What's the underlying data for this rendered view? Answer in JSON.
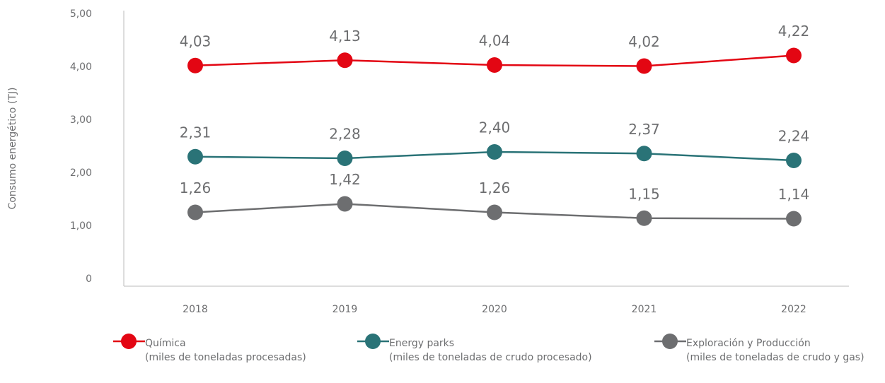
{
  "chart_data": {
    "type": "line",
    "y_label": "Consumo energético (TJ)",
    "categories": [
      "2018",
      "2019",
      "2020",
      "2021",
      "2022"
    ],
    "ylim": [
      0,
      5
    ],
    "yticks": [
      0,
      {
        "value": 1,
        "label": "1,00"
      },
      {
        "value": 2,
        "label": "2,00"
      },
      {
        "value": 3,
        "label": "3,00"
      },
      {
        "value": 4,
        "label": "4,00"
      },
      {
        "value": 5,
        "label": "5,00"
      }
    ],
    "series": [
      {
        "name": "Química",
        "unit": "(miles de toneladas procesadas)",
        "color": "#e30613",
        "values": [
          4.03,
          4.13,
          4.04,
          4.02,
          4.22
        ],
        "value_labels": [
          "4,03",
          "4,13",
          "4,04",
          "4,02",
          "4,22"
        ]
      },
      {
        "name": "Energy parks",
        "unit": "(miles de toneladas de crudo procesado)",
        "color": "#2a7377",
        "values": [
          2.31,
          2.28,
          2.4,
          2.37,
          2.24
        ],
        "value_labels": [
          "2,31",
          "2,28",
          "2,40",
          "2,37",
          "2,24"
        ]
      },
      {
        "name": "Exploración y Producción",
        "unit": "(miles de toneladas de crudo y gas)",
        "color": "#6d6e70",
        "values": [
          1.26,
          1.42,
          1.26,
          1.15,
          1.14
        ],
        "value_labels": [
          "1,26",
          "1,42",
          "1,26",
          "1,15",
          "1,14"
        ]
      }
    ]
  }
}
